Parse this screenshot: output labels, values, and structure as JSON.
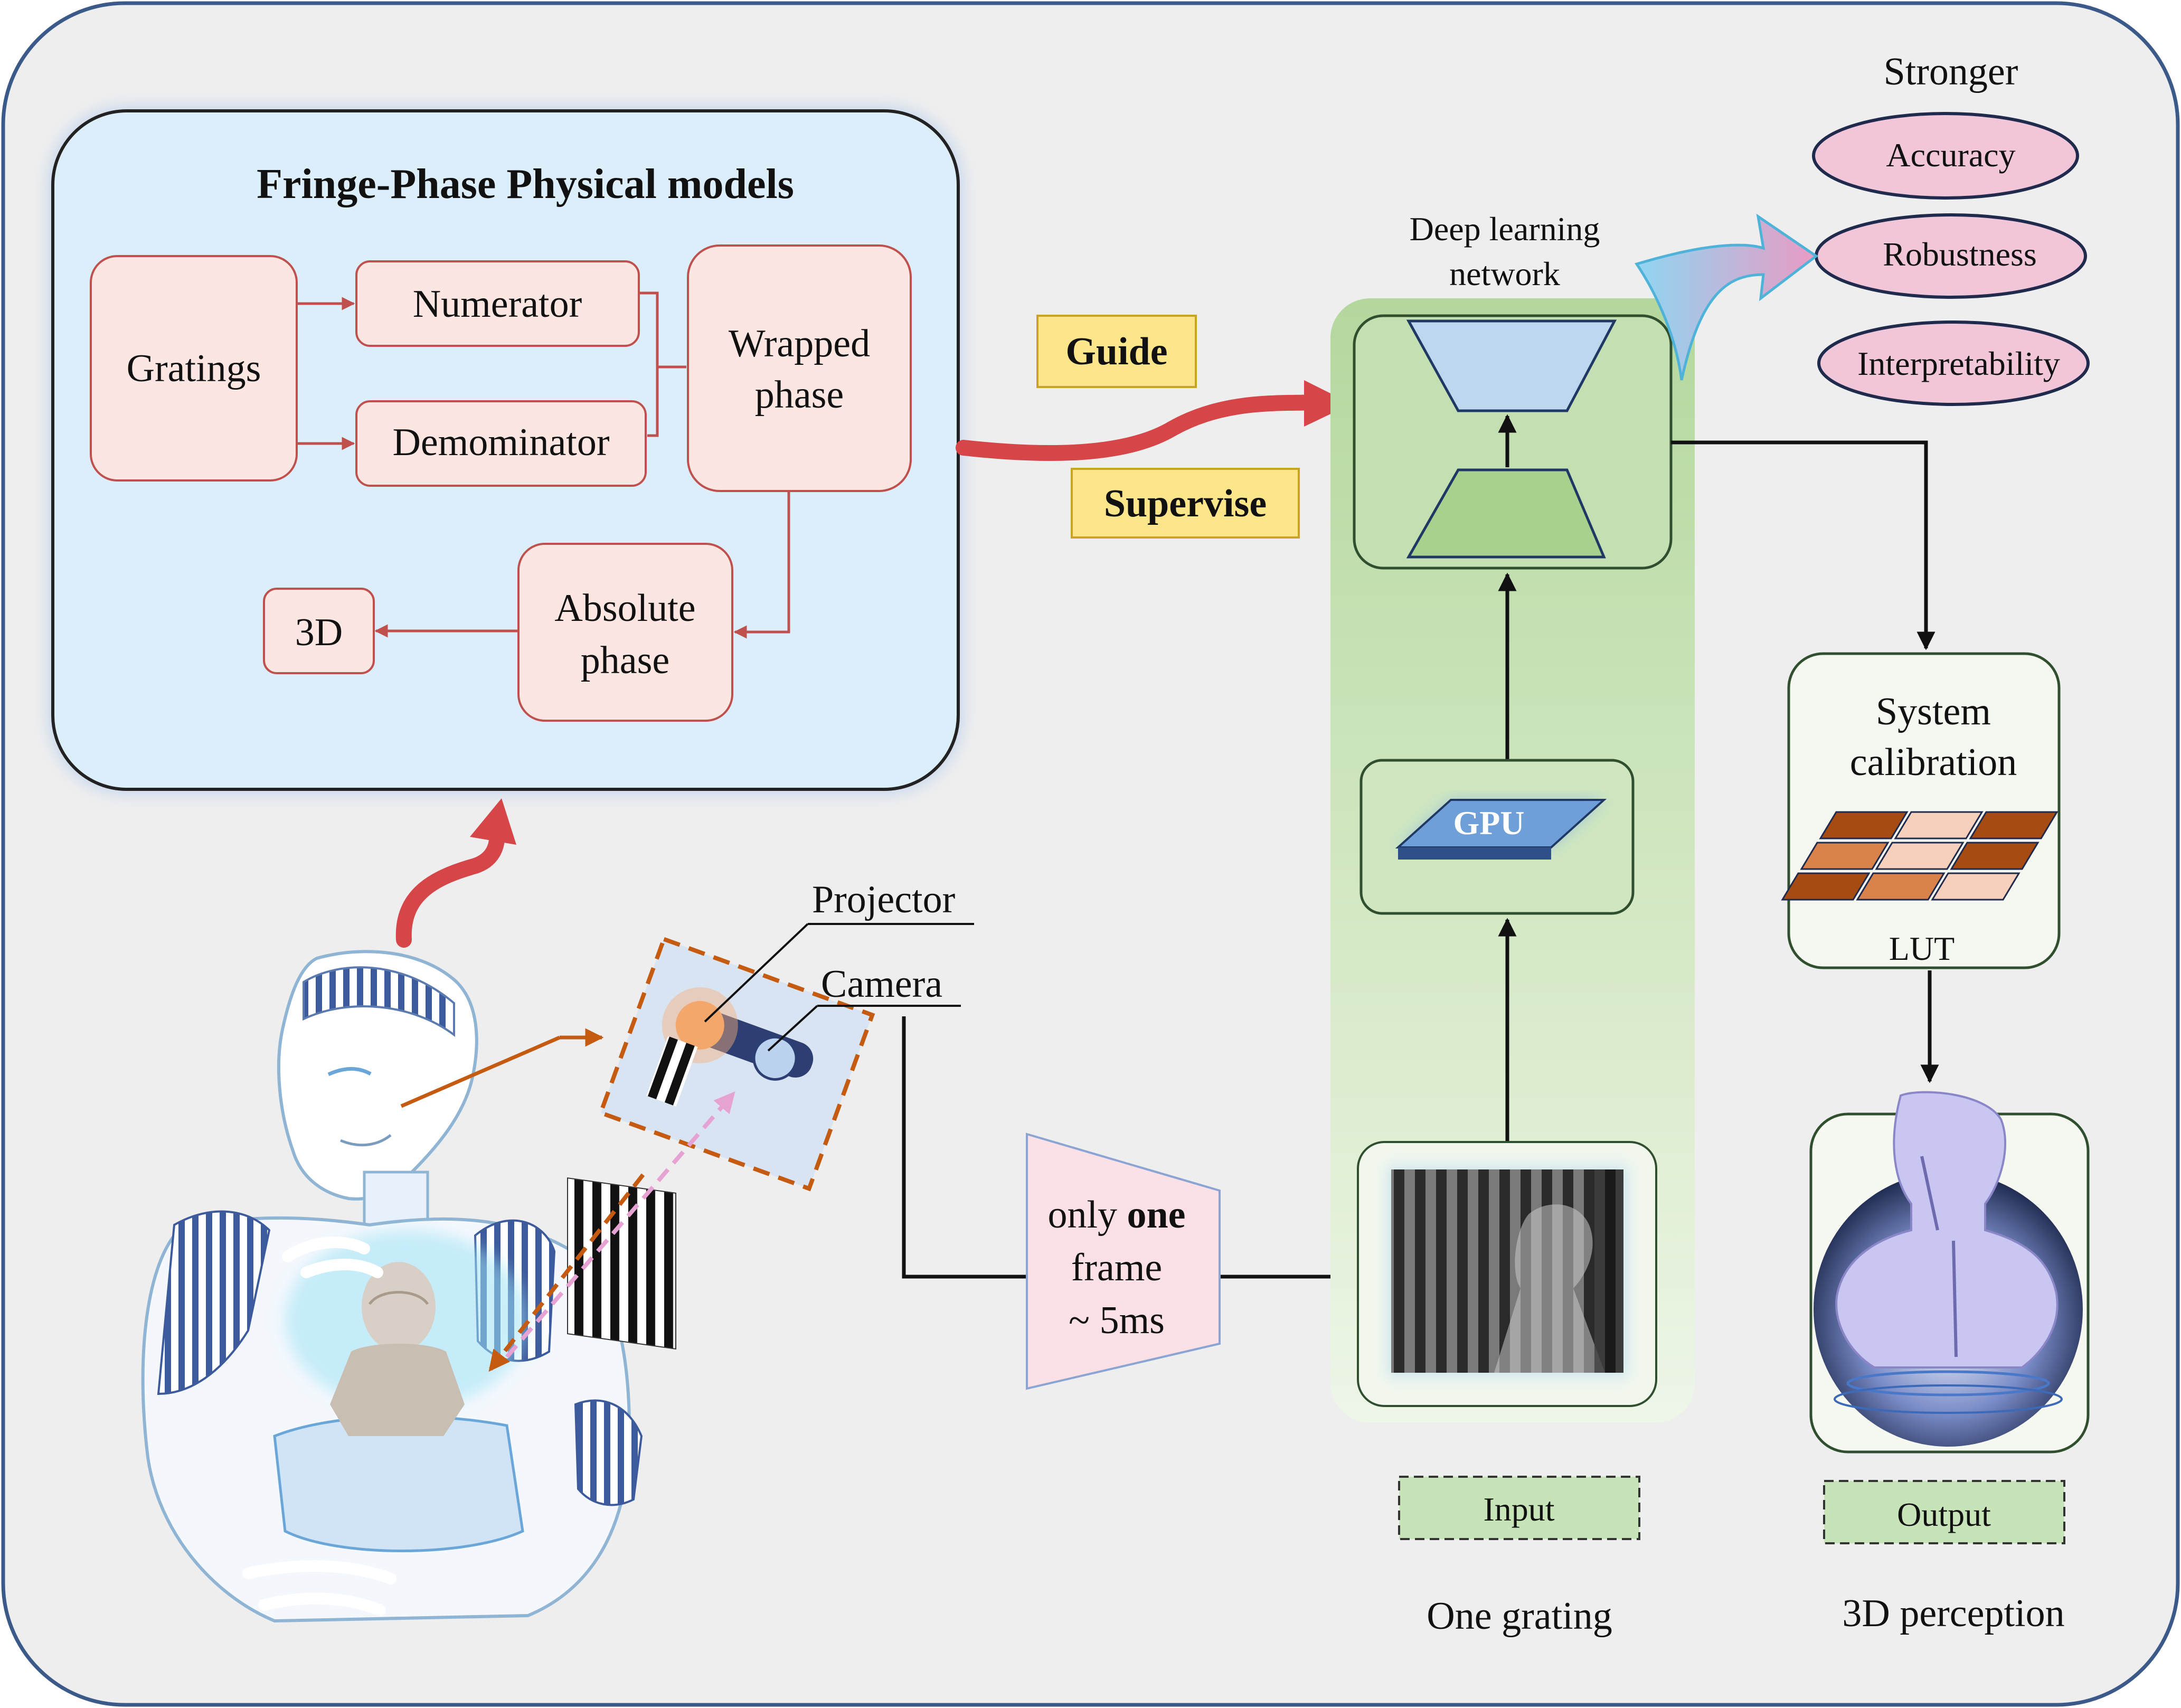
{
  "physical_models": {
    "title": "Fringe-Phase Physical  models",
    "gratings": "Gratings",
    "numerator": "Numerator",
    "denominator": "Demominator",
    "wrapped_line1": "Wrapped",
    "wrapped_line2": "phase",
    "absolute_line1": "Absolute",
    "absolute_line2": "phase",
    "three_d": "3D"
  },
  "tags": {
    "guide": "Guide",
    "supervise": "Supervise"
  },
  "hardware": {
    "projector": "Projector",
    "camera": "Camera"
  },
  "capture": {
    "line1_prefix": "only ",
    "line1_bold": "one",
    "line2": "frame",
    "line3": "~ 5ms"
  },
  "network": {
    "title_line1": "Deep learning",
    "title_line2": "network",
    "gpu_label": "GPU",
    "input_label": "Input",
    "caption": "One grating"
  },
  "benefits": {
    "title": "Stronger",
    "items": [
      "Accuracy",
      "Robustness",
      "Interpretability"
    ]
  },
  "calibration": {
    "title_line1": "System",
    "title_line2": "calibration",
    "lut_label": "LUT"
  },
  "output": {
    "label": "Output",
    "caption": "3D perception"
  },
  "colors": {
    "frame_border": "#3b5a8a",
    "outer_bg": "#eeeeee",
    "phase_panel_bg": "#dceefa",
    "phase_box_fill": "#fbe6e2",
    "phase_box_stroke": "#c0504d",
    "arrow_red": "#d64547",
    "tag_fill": "#fde68a",
    "tag_stroke": "#c9a227",
    "network_band": "#c6e0b4",
    "network_border": "#2f4f2f",
    "green_label": "#c7e3b8",
    "ellipse_fill": "#f0c6d8",
    "ellipse_stroke": "#1f2a4d",
    "lut_dark": "#a64b12",
    "lut_mid": "#d9824c",
    "lut_light": "#f6d0bb"
  }
}
